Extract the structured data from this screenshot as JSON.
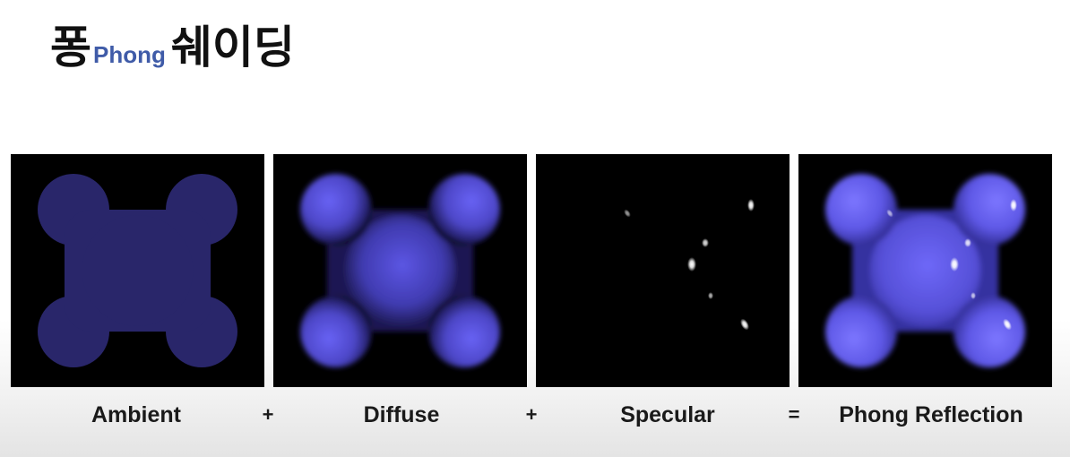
{
  "slide": {
    "title_ko_1": "퐁",
    "title_en": "Phong",
    "title_ko_2": "쉐이딩"
  },
  "equation": {
    "terms": [
      "Ambient",
      "Diffuse",
      "Specular",
      "Phong Reflection"
    ],
    "operators": [
      "+",
      "+",
      "="
    ]
  },
  "colors": {
    "ambient_fill": "#29266a",
    "diffuse_base": "#5a54e0",
    "highlight": "#ffffff",
    "panel_background": "#000000",
    "title_en_accent": "#3f5ba8"
  }
}
